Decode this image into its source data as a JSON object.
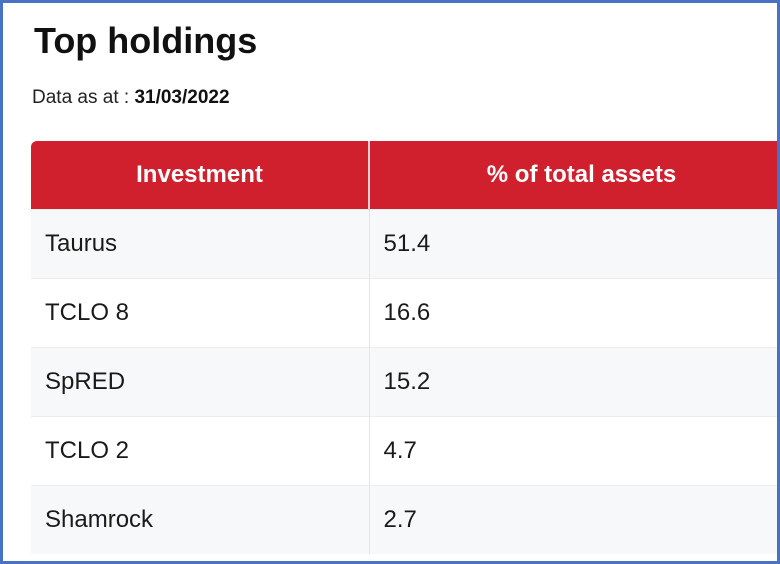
{
  "page": {
    "title": "Top holdings",
    "as_of_label": "Data as at :",
    "as_of_date": "31/03/2022"
  },
  "table": {
    "headers": [
      "Investment",
      "% of total assets"
    ],
    "rows": [
      {
        "investment": "Taurus",
        "pct": "51.4"
      },
      {
        "investment": "TCLO 8",
        "pct": "16.6"
      },
      {
        "investment": "SpRED",
        "pct": "15.2"
      },
      {
        "investment": "TCLO 2",
        "pct": "4.7"
      },
      {
        "investment": "Shamrock",
        "pct": "2.7"
      }
    ]
  },
  "colors": {
    "header_bg": "#d0202e",
    "frame_border": "#4a72c4",
    "row_alt_bg": "#f7f8f9"
  }
}
